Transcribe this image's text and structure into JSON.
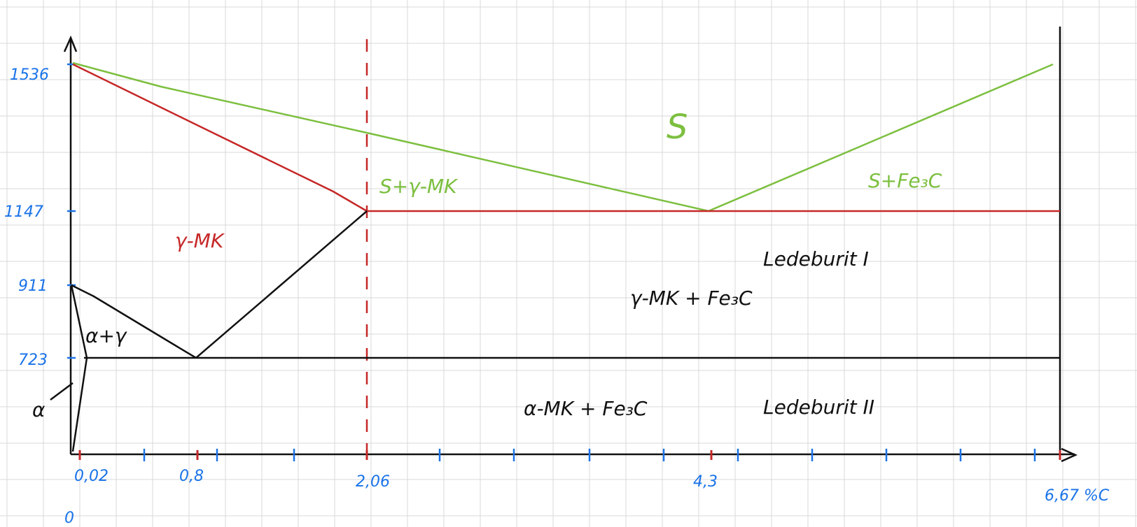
{
  "colors": {
    "grid": "#d9d9d9",
    "axis": "#111111",
    "blue": "#1a73e8",
    "red": "#c62828",
    "green": "#7cbf3f",
    "black": "#111111"
  },
  "y_axis": {
    "labels": [
      "1536",
      "1147",
      "911",
      "723"
    ]
  },
  "x_axis": {
    "labels": [
      "0,02",
      "0,8",
      "2,06",
      "4,3",
      "6,67 %C",
      "0"
    ]
  },
  "regions": {
    "liquid": "S",
    "liquid_gamma": "S+γ-MK",
    "liquid_fe3c": "S+Fe₃C",
    "gamma": "γ-MK",
    "ledeburit_1": "Ledeburit I",
    "gamma_fe3c": "γ-MK + Fe₃C",
    "alpha_gamma": "α+γ",
    "alpha": "α",
    "alpha_fe3c": "α-MK + Fe₃C",
    "ledeburit_2": "Ledeburit II"
  }
}
